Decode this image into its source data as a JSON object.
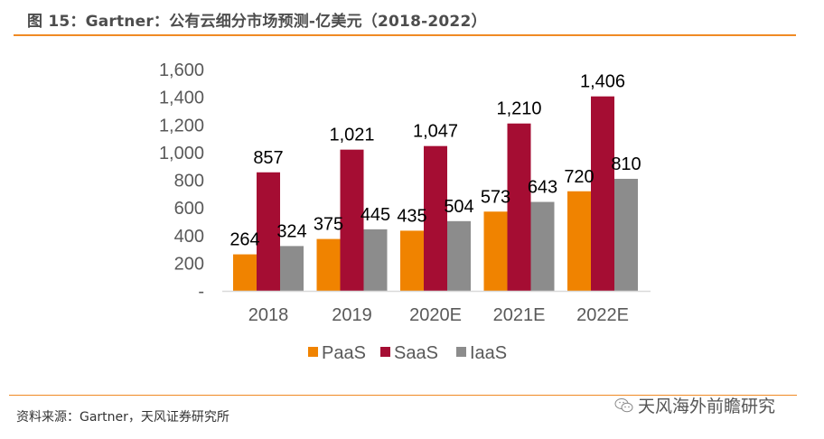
{
  "header": {
    "title": "图 15：Gartner：公有云细分市场预测-亿美元（2018-2022）"
  },
  "footer": {
    "source": "资料来源：Gartner，天风证券研究所",
    "watermark": "天风海外前瞻研究",
    "watermark_icon": "wechat-icon"
  },
  "colors": {
    "accent": "#f08a24",
    "PaaS": "#f08300",
    "SaaS": "#a50d33",
    "IaaS": "#8c8c8c",
    "axis_text": "#595959"
  },
  "chart_data": {
    "type": "bar",
    "title": "Gartner：公有云细分市场预测-亿美元（2018-2022）",
    "xlabel": "",
    "ylabel": "",
    "categories": [
      "2018",
      "2019",
      "2020E",
      "2021E",
      "2022E"
    ],
    "series": [
      {
        "name": "PaaS",
        "values": [
          264,
          375,
          435,
          573,
          720
        ]
      },
      {
        "name": "SaaS",
        "values": [
          857,
          1021,
          1047,
          1210,
          1406
        ]
      },
      {
        "name": "IaaS",
        "values": [
          324,
          445,
          504,
          643,
          810
        ]
      }
    ],
    "data_labels": [
      [
        "264",
        "375",
        "435",
        "573",
        "720"
      ],
      [
        "857",
        "1,021",
        "1,047",
        "1,210",
        "1,406"
      ],
      [
        "324",
        "445",
        "504",
        "643",
        "810"
      ]
    ],
    "ylim": [
      0,
      1600
    ],
    "yticks": [
      0,
      200,
      400,
      600,
      800,
      1000,
      1200,
      1400,
      1600
    ],
    "ytick_labels": [
      "-",
      "200",
      "400",
      "600",
      "800",
      "1,000",
      "1,200",
      "1,400",
      "1,600"
    ],
    "grid": false,
    "legend": {
      "position": "bottom",
      "entries": [
        "PaaS",
        "SaaS",
        "IaaS"
      ],
      "labels": [
        "PaaS",
        "SaaS",
        "IaaS"
      ]
    }
  }
}
